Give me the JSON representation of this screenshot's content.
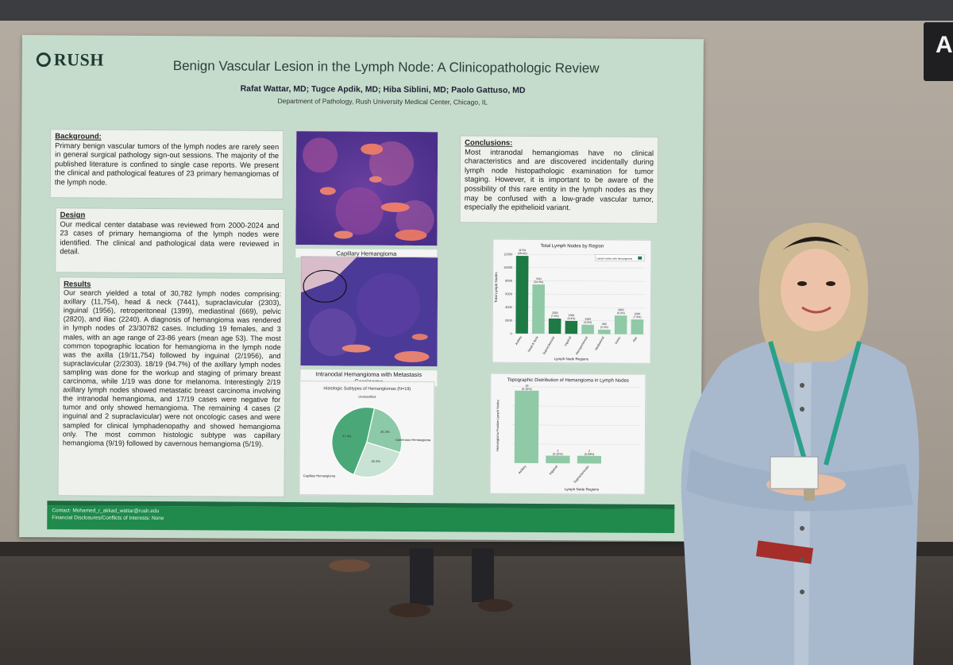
{
  "sign": {
    "text": "A"
  },
  "poster": {
    "logo": "RUSH",
    "title": "Benign Vascular Lesion in the Lymph Node: A Clinicopathologic Review",
    "authors": "Rafat Wattar, MD; Tugce Apdik, MD; Hiba Siblini, MD; Paolo Gattuso, MD",
    "department": "Department of Pathology, Rush University Medical Center, Chicago, IL",
    "background": {
      "heading": "Background:",
      "text": "Primary benign vascular tumors of the lymph nodes are rarely seen in general surgical pathology sign-out sessions. The majority of the published literature is confined to single case reports. We present the clinical and pathological features of 23 primary hemangiomas of the lymph node."
    },
    "design": {
      "heading": "Design",
      "text": "Our medical center database was reviewed from 2000-2024 and 23 cases of primary hemangioma of the lymph nodes were identified. The clinical and pathological data were reviewed in detail."
    },
    "results": {
      "heading": "Results",
      "text": "Our search yielded a total of 30,782 lymph nodes comprising: axillary (11,754), head & neck (7441), supraclavicular (2303), inguinal (1956), retroperitoneal (1399), mediastinal (669), pelvic (2820), and iliac (2240). A diagnosis of hemangioma was rendered in lymph nodes of 23/30782 cases. Including 19 females, and 3 males, with an age range of 23-86 years (mean age 53). The most common topographic location for hemangioma in the lymph node was the axilla (19/11,754) followed by inguinal (2/1956), and supraclavicular (2/2303). 18/19 (94.7%) of the axillary lymph nodes sampling was done for the workup and staging of primary breast carcinoma, while 1/19 was done for melanoma. Interestingly 2/19 axillary lymph nodes showed metastatic breast carcinoma involving the intranodal hemangioma, and 17/19 cases were negative for tumor and only showed hemangioma. The remaining 4 cases (2 inguinal and 2 supraclavicular) were not oncologic cases and were sampled for clinical lymphadenopathy and showed hemangioma only. The most common histologic subtype was capillary hemangioma (9/19) followed by cavernous hemangioma (5/19)."
    },
    "conclusions": {
      "heading": "Conclusions:",
      "text": "Most intranodal hemangiomas have no clinical characteristics and are discovered incidentally during lymph node histopathologic examination for tumor staging. However, it is important to be aware of the possibility of this rare entity in the lymph nodes as they may be confused with a low-grade vascular tumor, especially the epithelioid variant."
    },
    "image1_caption": "Capillary Hemangioma",
    "image2_caption": "Intranodal Hemangioma with Metastasis Carcinoma",
    "footer": {
      "contact": "Contact: Mohamed_r_akkad_wattar@rush.edu",
      "disclosures": "Financial Disclosures/Conflicts of Interests: None"
    },
    "colors": {
      "poster_bg": "#c5dccd",
      "brand_green": "#1f8a4b",
      "bar_dark": "#1e7a45",
      "bar_light": "#8fc9a6"
    }
  },
  "chart_data": [
    {
      "type": "bar",
      "title": "Total Lymph Nodes by Region",
      "xlabel": "Lymph Node Regions",
      "ylabel": "Total Lymph Nodes",
      "legend": "Lymph nodes with hemangioma",
      "legend_position": "top-right",
      "categories": [
        "Axillary",
        "Head & Neck",
        "Supraclavicular",
        "Inguinal",
        "Retroperitoneal",
        "Mediastinal",
        "Pelvic",
        "Iliac"
      ],
      "values": [
        11754,
        7441,
        2303,
        1956,
        1399,
        669,
        2820,
        2240
      ],
      "labels": [
        "11754\n(38.4%)",
        "7441\n(24.3%)",
        "2303\n(7.5%)",
        "1956\n(6.4%)",
        "1399\n(4.6%)",
        "669\n(2.2%)",
        "2820\n(9.2%)",
        "2240\n(7.3%)"
      ],
      "bar_colors": [
        "#1e7a45",
        "#8fc9a6",
        "#1e7a45",
        "#1e7a45",
        "#8fc9a6",
        "#8fc9a6",
        "#8fc9a6",
        "#8fc9a6"
      ],
      "yticks": [
        0,
        2000,
        4000,
        6000,
        8000,
        10000,
        12000
      ],
      "ylim": [
        0,
        12500
      ],
      "grid": true
    },
    {
      "type": "bar",
      "title": "Topographic Distribution of Hemangioma in Lymph Nodes",
      "xlabel": "Lymph Node Regions",
      "ylabel": "Hemangioma Positive Lymph Nodes",
      "categories": [
        "Axillary",
        "Inguinal",
        "Supraclavicular"
      ],
      "values": [
        19,
        2,
        2
      ],
      "labels": [
        "19\n(0.16%)",
        "2\n(0.10%)",
        "2\n(0.09%)"
      ],
      "ylim": [
        0,
        20
      ],
      "grid": true
    },
    {
      "type": "pie",
      "title": "Histologic Subtypes of Hemangiomas (N=19)",
      "categories": [
        "Capillary Hemangioma",
        "Cavernous Hemangioma",
        "Unclassified"
      ],
      "values": [
        47.4,
        26.3,
        26.3
      ],
      "labels": [
        "47.4%",
        "26.3%",
        "26.3%"
      ],
      "colors": [
        "#4aa878",
        "#8cc9a9",
        "#c8e2d3"
      ]
    }
  ]
}
